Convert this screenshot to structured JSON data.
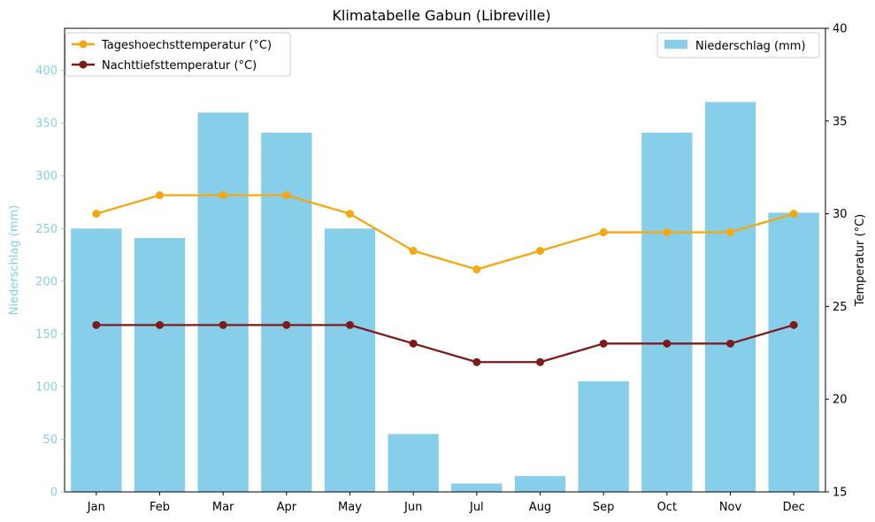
{
  "chart_data": {
    "type": "bar+line",
    "title": "Klimatabelle Gabun (Libreville)",
    "categories": [
      "Jan",
      "Feb",
      "Mar",
      "Apr",
      "May",
      "Jun",
      "Jul",
      "Aug",
      "Sep",
      "Oct",
      "Nov",
      "Dec"
    ],
    "bars": {
      "name": "Niederschlag (mm)",
      "color": "#87CEEB",
      "values": [
        250,
        241,
        360,
        341,
        250,
        55,
        8,
        15,
        105,
        341,
        370,
        265
      ]
    },
    "lines": [
      {
        "name": "Tageshoechsttemperatur (°C)",
        "color": "#F5A711",
        "values": [
          30,
          31,
          31,
          31,
          30,
          28,
          27,
          28,
          29,
          29,
          29,
          30
        ]
      },
      {
        "name": "Nachttiefsttemperatur (°C)",
        "color": "#7F1A1A",
        "values": [
          24,
          24,
          24,
          24,
          24,
          23,
          22,
          22,
          23,
          23,
          23,
          24
        ]
      }
    ],
    "y_left": {
      "label": "Niederschlag (mm)",
      "color": "#87CEEB",
      "min": 0,
      "max": 440,
      "ticks": [
        0,
        50,
        100,
        150,
        200,
        250,
        300,
        350,
        400
      ]
    },
    "y_right": {
      "label": "Temperatur (°C)",
      "min": 15,
      "max": 40,
      "ticks": [
        15,
        20,
        25,
        30,
        35,
        40
      ]
    },
    "grid": false,
    "legend_lines_placement": "top-left",
    "legend_bars_placement": "top-right"
  }
}
